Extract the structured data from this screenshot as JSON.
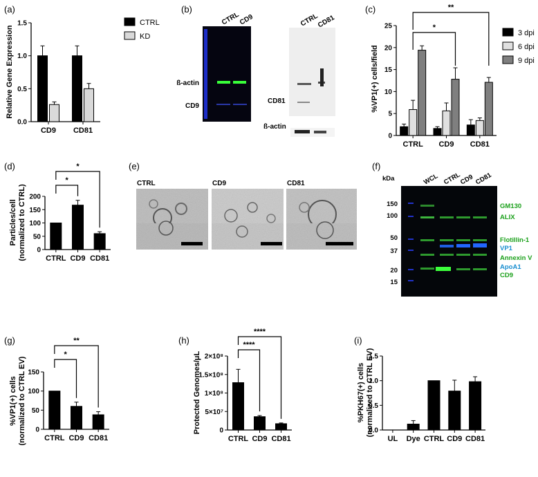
{
  "panel_labels": [
    "(a)",
    "(b)",
    "(c)",
    "(d)",
    "(e)",
    "(f)",
    "(g)",
    "(h)",
    "(i)"
  ],
  "blot_b": {
    "left": {
      "lanes": [
        "CTRL",
        "CD9"
      ],
      "bands": [
        "ß-actin",
        "CD9"
      ]
    },
    "right": {
      "lanes": [
        "CTRL",
        "CD81"
      ],
      "bands": [
        "CD81",
        "ß-actin"
      ]
    }
  },
  "em_e": {
    "labels": [
      "CTRL",
      "CD9",
      "CD81"
    ]
  },
  "blot_f": {
    "kda_label": "kDa",
    "ladder": [
      "150",
      "100",
      "50",
      "37",
      "20",
      "15"
    ],
    "lanes": [
      "WCL",
      "CTRL",
      "CD9",
      "CD81"
    ],
    "markers": [
      {
        "label": "GM130",
        "color": "#1aa01a"
      },
      {
        "label": "ALIX",
        "color": "#1aa01a"
      },
      {
        "label": "Flotillin-1",
        "color": "#1aa01a"
      },
      {
        "label": "VP1",
        "color": "#1a8fd0"
      },
      {
        "label": "Annexin V",
        "color": "#1aa01a"
      },
      {
        "label": "ApoA1",
        "color": "#1a8fd0"
      },
      {
        "label": "CD9",
        "color": "#1aa01a"
      }
    ]
  },
  "chart_data": [
    {
      "panel": "a",
      "type": "bar",
      "ylabel": "Relative Gene Expression",
      "categories": [
        "CD9",
        "CD81"
      ],
      "series": [
        {
          "name": "CTRL",
          "color": "#000000",
          "values": [
            1.0,
            1.0
          ],
          "errors": [
            0.15,
            0.15
          ]
        },
        {
          "name": "KD",
          "color": "#d9d9d9",
          "values": [
            0.26,
            0.5
          ],
          "errors": [
            0.04,
            0.08
          ]
        }
      ],
      "ylim": [
        0,
        1.5
      ],
      "yticks": [
        "0.0",
        "0.5",
        "1.0",
        "1.5"
      ],
      "legend": "top-right"
    },
    {
      "panel": "c",
      "type": "bar",
      "ylabel": "%VP1(+) cells/field",
      "categories": [
        "CTRL",
        "CD9",
        "CD81"
      ],
      "series": [
        {
          "name": "3 dpi",
          "color": "#000000",
          "values": [
            2.0,
            1.6,
            2.4
          ],
          "errors": [
            0.6,
            0.4,
            1.2
          ]
        },
        {
          "name": "6 dpi",
          "color": "#e0e0e0",
          "values": [
            5.9,
            5.6,
            3.4
          ],
          "errors": [
            2.1,
            1.8,
            0.6
          ]
        },
        {
          "name": "9 dpi",
          "color": "#7f7f7f",
          "values": [
            19.4,
            12.8,
            12.1
          ],
          "errors": [
            1.0,
            2.6,
            1.1
          ]
        }
      ],
      "ylim": [
        0,
        25
      ],
      "yticks": [
        "0",
        "5",
        "10",
        "15",
        "20",
        "25"
      ],
      "significance": [
        "*",
        "**"
      ],
      "legend": "top-right"
    },
    {
      "panel": "d",
      "type": "bar",
      "ylabel": "Particles/cell (normalized to CTRL)",
      "categories": [
        "CTRL",
        "CD9",
        "CD81"
      ],
      "values": [
        100,
        167,
        60
      ],
      "errors": [
        0,
        18,
        7
      ],
      "ylim": [
        0,
        200
      ],
      "yticks": [
        "0",
        "50",
        "100",
        "150",
        "200"
      ],
      "significance": [
        "*",
        "*"
      ]
    },
    {
      "panel": "g",
      "type": "bar",
      "ylabel": "%VP1(+) cells (normalized to CTRL EV)",
      "categories": [
        "CTRL",
        "CD9",
        "CD81"
      ],
      "values": [
        100,
        60,
        38
      ],
      "errors": [
        0,
        11,
        8
      ],
      "ylim": [
        0,
        150
      ],
      "yticks": [
        "0",
        "50",
        "100",
        "150"
      ],
      "significance": [
        "*",
        "**"
      ]
    },
    {
      "panel": "h",
      "type": "bar",
      "ylabel": "Protected Genomes/μL",
      "categories": [
        "CTRL",
        "CD9",
        "CD81"
      ],
      "values": [
        128000000,
        36000000,
        17000000
      ],
      "errors": [
        36000000,
        3000000,
        2000000
      ],
      "ylim": [
        0,
        200000000
      ],
      "yticks": [
        "0",
        "5×10⁷",
        "1×10⁸",
        "1.5×10⁸",
        "2×10⁸"
      ],
      "significance": [
        "****",
        "****"
      ]
    },
    {
      "panel": "i",
      "type": "bar",
      "ylabel": "%PKH67(+) cells (normalized to CTRL EV)",
      "categories": [
        "UL",
        "Dye",
        "CTRL",
        "CD9",
        "CD81"
      ],
      "values": [
        0,
        0.12,
        1.0,
        0.79,
        0.98
      ],
      "errors": [
        0,
        0.07,
        0,
        0.22,
        0.1
      ],
      "ylim": [
        0,
        1.5
      ],
      "yticks": [
        "0.0",
        "0.5",
        "1.0",
        "1.5"
      ]
    }
  ]
}
